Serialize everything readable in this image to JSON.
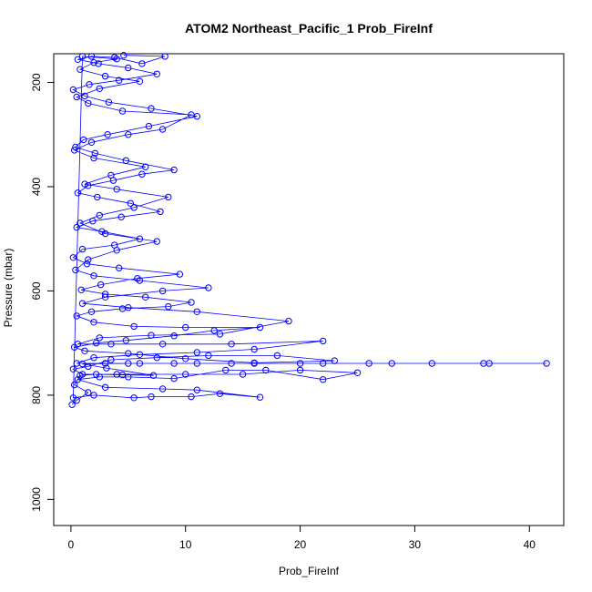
{
  "chart_data": {
    "type": "scatter",
    "title": "ATOM2 Northeast_Pacific_1 Prob_FireInf",
    "xlabel": "Prob_FireInf",
    "ylabel": "Pressure (mbar)",
    "xlim": [
      -1.5,
      43
    ],
    "ylim": [
      1050,
      145
    ],
    "y_reversed": true,
    "x_ticks": [
      "0",
      "10",
      "20",
      "30",
      "40"
    ],
    "y_ticks": [
      "200",
      "400",
      "600",
      "800",
      "1000"
    ],
    "grid": false,
    "legend": "none",
    "color": "#0000ff",
    "series": [
      {
        "values": [
          [
            0.1,
            818
          ],
          [
            0.5,
            810
          ],
          [
            1.5,
            795
          ],
          [
            0.3,
            780
          ],
          [
            0.8,
            762
          ],
          [
            2.2,
            760
          ],
          [
            4.5,
            761
          ],
          [
            7.2,
            762
          ],
          [
            3.1,
            748
          ],
          [
            1.0,
            740
          ],
          [
            5.0,
            739
          ],
          [
            9.0,
            739
          ],
          [
            14.0,
            739
          ],
          [
            20.0,
            739
          ],
          [
            26.0,
            739
          ],
          [
            31.5,
            739
          ],
          [
            36.5,
            739
          ],
          [
            41.5,
            739
          ],
          [
            36.0,
            739
          ],
          [
            28.0,
            739
          ],
          [
            22.0,
            739
          ],
          [
            16.0,
            739
          ],
          [
            11.0,
            739
          ],
          [
            6.0,
            739
          ],
          [
            3.0,
            739
          ],
          [
            0.5,
            739
          ],
          [
            2.0,
            728
          ],
          [
            6.0,
            722
          ],
          [
            11.0,
            718
          ],
          [
            16.0,
            712
          ],
          [
            22.0,
            696
          ],
          [
            14.0,
            702
          ],
          [
            8.0,
            702
          ],
          [
            3.5,
            702
          ],
          [
            0.6,
            702
          ],
          [
            2.5,
            690
          ],
          [
            7.0,
            685
          ],
          [
            13.0,
            683
          ],
          [
            19.0,
            658
          ],
          [
            11.0,
            640
          ],
          [
            5.0,
            632
          ],
          [
            1.0,
            624
          ],
          [
            3.0,
            612
          ],
          [
            8.0,
            600
          ],
          [
            12.0,
            594
          ],
          [
            6.0,
            580
          ],
          [
            2.0,
            571
          ],
          [
            0.4,
            560
          ],
          [
            1.5,
            540
          ],
          [
            4.0,
            522
          ],
          [
            7.5,
            505
          ],
          [
            3.0,
            490
          ],
          [
            0.8,
            470
          ],
          [
            2.5,
            455
          ],
          [
            5.5,
            440
          ],
          [
            8.5,
            420
          ],
          [
            4.0,
            405
          ],
          [
            1.2,
            395
          ],
          [
            3.5,
            378
          ],
          [
            6.5,
            362
          ],
          [
            2.0,
            345
          ],
          [
            0.3,
            330
          ],
          [
            1.8,
            315
          ],
          [
            5.0,
            300
          ],
          [
            8.0,
            290
          ],
          [
            10.5,
            262
          ],
          [
            4.5,
            255
          ],
          [
            1.5,
            240
          ],
          [
            0.5,
            228
          ],
          [
            2.5,
            212
          ],
          [
            6.0,
            198
          ],
          [
            3.0,
            188
          ],
          [
            0.8,
            175
          ],
          [
            2.0,
            162
          ],
          [
            4.0,
            155
          ],
          [
            1.0,
            150
          ],
          [
            0.2,
            805
          ],
          [
            2.0,
            800
          ],
          [
            5.5,
            805
          ],
          [
            7.0,
            803
          ],
          [
            10.5,
            803
          ],
          [
            13.0,
            797
          ],
          [
            16.5,
            804
          ],
          [
            11.0,
            790
          ],
          [
            8.0,
            788
          ],
          [
            3.0,
            785
          ],
          [
            0.6,
            770
          ],
          [
            2.5,
            765
          ],
          [
            5.0,
            765
          ],
          [
            9.0,
            768
          ],
          [
            13.5,
            752
          ],
          [
            17.0,
            752
          ],
          [
            22.0,
            770
          ],
          [
            25.0,
            757
          ],
          [
            20.0,
            752
          ],
          [
            15.0,
            760
          ],
          [
            10.0,
            760
          ],
          [
            4.0,
            760
          ],
          [
            1.0,
            760
          ],
          [
            0.2,
            750
          ],
          [
            1.5,
            745
          ],
          [
            3.5,
            732
          ],
          [
            7.5,
            728
          ],
          [
            12.0,
            724
          ],
          [
            18.0,
            724
          ],
          [
            23.0,
            734
          ],
          [
            16.0,
            738
          ],
          [
            10.0,
            730
          ],
          [
            5.0,
            720
          ],
          [
            1.2,
            715
          ],
          [
            0.3,
            708
          ],
          [
            2.2,
            700
          ],
          [
            4.8,
            695
          ],
          [
            9.0,
            686
          ],
          [
            12.5,
            676
          ],
          [
            16.5,
            670
          ],
          [
            10.0,
            670
          ],
          [
            5.5,
            668
          ],
          [
            2.0,
            660
          ],
          [
            0.5,
            648
          ],
          [
            1.8,
            640
          ],
          [
            4.5,
            634
          ],
          [
            8.5,
            630
          ],
          [
            10.5,
            622
          ],
          [
            6.5,
            612
          ],
          [
            3.0,
            606
          ],
          [
            0.9,
            598
          ],
          [
            2.6,
            588
          ],
          [
            5.8,
            576
          ],
          [
            9.5,
            568
          ],
          [
            4.2,
            556
          ],
          [
            1.4,
            548
          ],
          [
            0.2,
            536
          ],
          [
            1.0,
            520
          ],
          [
            3.8,
            512
          ],
          [
            6.0,
            500
          ],
          [
            2.7,
            486
          ],
          [
            0.5,
            478
          ],
          [
            1.9,
            466
          ],
          [
            4.4,
            458
          ],
          [
            7.8,
            448
          ],
          [
            5.2,
            432
          ],
          [
            2.3,
            420
          ],
          [
            0.6,
            412
          ],
          [
            1.5,
            398
          ],
          [
            3.7,
            388
          ],
          [
            6.2,
            376
          ],
          [
            9.0,
            368
          ],
          [
            4.8,
            350
          ],
          [
            2.1,
            336
          ],
          [
            0.4,
            324
          ],
          [
            1.1,
            310
          ],
          [
            3.2,
            300
          ],
          [
            6.8,
            284
          ],
          [
            11.0,
            265
          ],
          [
            7.0,
            250
          ],
          [
            3.3,
            238
          ],
          [
            1.2,
            226
          ],
          [
            0.2,
            214
          ],
          [
            1.6,
            204
          ],
          [
            4.2,
            196
          ],
          [
            7.5,
            184
          ],
          [
            5.0,
            172
          ],
          [
            2.4,
            164
          ],
          [
            0.6,
            156
          ],
          [
            1.8,
            150
          ],
          [
            3.8,
            152
          ],
          [
            6.2,
            164
          ],
          [
            8.2,
            150
          ],
          [
            4.6,
            148
          ]
        ]
      }
    ]
  }
}
